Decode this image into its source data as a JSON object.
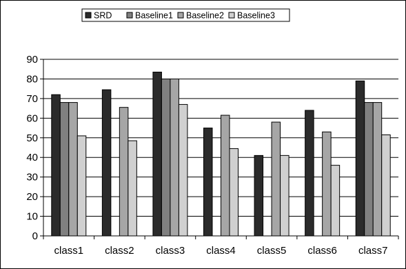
{
  "chart_data": {
    "type": "bar",
    "title": "",
    "xlabel": "",
    "ylabel": "",
    "categories": [
      "class1",
      "class2",
      "class3",
      "class4",
      "class5",
      "class6",
      "class7"
    ],
    "series": [
      {
        "name": "SRD",
        "color": "#2b2b2b",
        "values": [
          72,
          74.5,
          83.5,
          55,
          41,
          64,
          79
        ]
      },
      {
        "name": "Baseline1",
        "color": "#808080",
        "values": [
          68,
          0,
          80,
          0,
          0,
          0,
          68
        ]
      },
      {
        "name": "Baseline2",
        "color": "#a6a6a6",
        "values": [
          68,
          65.5,
          80,
          61.5,
          58,
          53,
          68
        ]
      },
      {
        "name": "Baseline3",
        "color": "#d0d0d0",
        "values": [
          51,
          48.5,
          67,
          44.5,
          41,
          36,
          51.5
        ]
      }
    ],
    "ylim": [
      0,
      90
    ],
    "yticks": [
      0,
      10,
      20,
      30,
      40,
      50,
      60,
      70,
      80,
      90
    ],
    "grid": true,
    "legend_position": "top"
  }
}
